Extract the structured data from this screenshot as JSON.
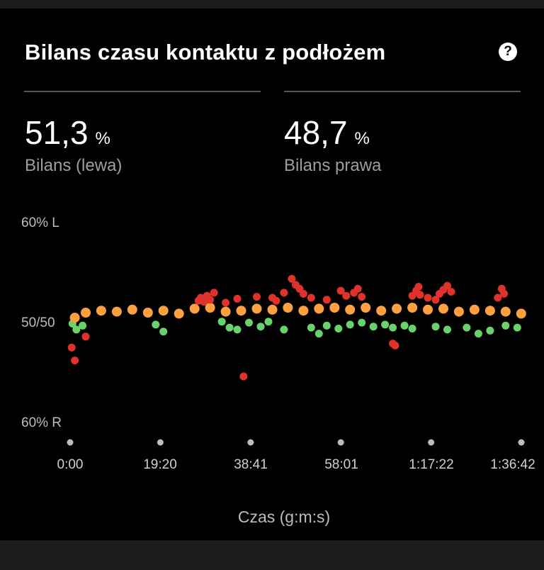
{
  "card": {
    "title": "Bilans czasu kontaktu z podłożem",
    "help_icon": "?"
  },
  "stats": {
    "left": {
      "value": "51,3",
      "unit": "%",
      "label": "Bilans (lewa)"
    },
    "right": {
      "value": "48,7",
      "unit": "%",
      "label": "Bilans prawa"
    }
  },
  "chart_data": {
    "type": "scatter",
    "title": "Bilans czasu kontaktu z podłożem",
    "xlabel": "Czas (g:m:s)",
    "ylabel": "",
    "x_ticks": [
      "0:00",
      "19:20",
      "38:41",
      "58:01",
      "1:17:22",
      "1:36:42"
    ],
    "x_tick_seconds": [
      0,
      1160,
      2321,
      3481,
      4642,
      5802
    ],
    "y_ticks": [
      "60% L",
      "50/50",
      "60% R"
    ],
    "ylim": [
      40,
      60
    ],
    "y_units": "% L",
    "grid": false,
    "color_categories": {
      "red": "#e0322b",
      "orange": "#ffa040",
      "green": "#6ad26b"
    },
    "series": [
      {
        "color": "red",
        "points": [
          [
            20,
            47.6
          ],
          [
            60,
            46.3
          ],
          [
            200,
            48.7
          ],
          [
            2230,
            44.7
          ],
          [
            1650,
            52.3
          ],
          [
            1680,
            52.6
          ],
          [
            1720,
            52.2
          ],
          [
            1760,
            52.8
          ],
          [
            1800,
            52.4
          ],
          [
            1850,
            53.1
          ],
          [
            2000,
            52.1
          ],
          [
            2150,
            52.5
          ],
          [
            2400,
            52.7
          ],
          [
            2600,
            52.6
          ],
          [
            2650,
            52.3
          ],
          [
            2750,
            53.1
          ],
          [
            2850,
            54.5
          ],
          [
            2900,
            53.9
          ],
          [
            2950,
            53.5
          ],
          [
            3000,
            53.0
          ],
          [
            3100,
            52.6
          ],
          [
            3300,
            52.4
          ],
          [
            3480,
            53.3
          ],
          [
            3550,
            52.8
          ],
          [
            3650,
            53.1
          ],
          [
            3700,
            53.5
          ],
          [
            3750,
            52.7
          ],
          [
            4150,
            48.0
          ],
          [
            4180,
            47.8
          ],
          [
            4400,
            52.8
          ],
          [
            4450,
            53.3
          ],
          [
            4480,
            53.7
          ],
          [
            4500,
            52.9
          ],
          [
            4600,
            52.6
          ],
          [
            4700,
            52.4
          ],
          [
            4750,
            53.0
          ],
          [
            4800,
            53.4
          ],
          [
            4850,
            53.8
          ],
          [
            4900,
            53.2
          ],
          [
            5500,
            52.6
          ],
          [
            5550,
            53.5
          ],
          [
            5580,
            53.0
          ]
        ]
      },
      {
        "color": "orange",
        "points": [
          [
            60,
            50.6
          ],
          [
            200,
            51.1
          ],
          [
            400,
            51.3
          ],
          [
            600,
            51.2
          ],
          [
            800,
            51.4
          ],
          [
            1000,
            51.1
          ],
          [
            1200,
            51.3
          ],
          [
            1400,
            51.0
          ],
          [
            1600,
            51.5
          ],
          [
            1800,
            51.6
          ],
          [
            2000,
            51.2
          ],
          [
            2200,
            51.3
          ],
          [
            2400,
            51.5
          ],
          [
            2600,
            51.4
          ],
          [
            2800,
            51.6
          ],
          [
            3000,
            51.3
          ],
          [
            3200,
            51.5
          ],
          [
            3400,
            51.6
          ],
          [
            3600,
            51.4
          ],
          [
            3800,
            51.6
          ],
          [
            4000,
            51.3
          ],
          [
            4200,
            51.5
          ],
          [
            4400,
            51.6
          ],
          [
            4600,
            51.4
          ],
          [
            4800,
            51.5
          ],
          [
            5000,
            51.2
          ],
          [
            5200,
            51.4
          ],
          [
            5400,
            51.3
          ],
          [
            5600,
            51.2
          ],
          [
            5800,
            51.0
          ]
        ]
      },
      {
        "color": "green",
        "points": [
          [
            30,
            50.0
          ],
          [
            80,
            49.4
          ],
          [
            160,
            49.8
          ],
          [
            1100,
            49.9
          ],
          [
            1200,
            49.2
          ],
          [
            1950,
            50.2
          ],
          [
            2050,
            49.6
          ],
          [
            2150,
            49.4
          ],
          [
            2300,
            50.1
          ],
          [
            2450,
            49.7
          ],
          [
            2550,
            50.2
          ],
          [
            2750,
            49.4
          ],
          [
            3100,
            49.6
          ],
          [
            3200,
            49.0
          ],
          [
            3300,
            49.8
          ],
          [
            3450,
            49.5
          ],
          [
            3600,
            49.9
          ],
          [
            3750,
            50.1
          ],
          [
            3900,
            49.7
          ],
          [
            4050,
            49.9
          ],
          [
            4150,
            49.6
          ],
          [
            4300,
            49.8
          ],
          [
            4400,
            49.5
          ],
          [
            4700,
            49.7
          ],
          [
            4850,
            49.4
          ],
          [
            5100,
            49.6
          ],
          [
            5250,
            49.0
          ],
          [
            5400,
            49.3
          ],
          [
            5600,
            49.8
          ],
          [
            5750,
            49.6
          ]
        ]
      }
    ]
  }
}
